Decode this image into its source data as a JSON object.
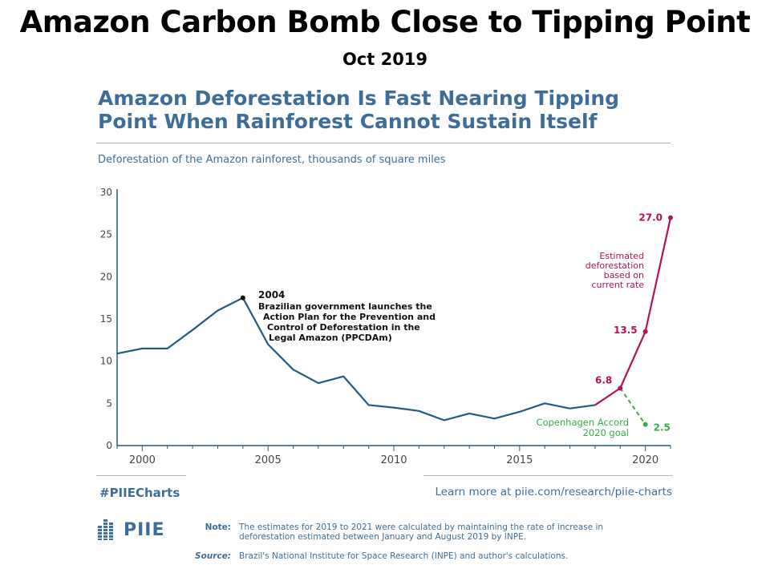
{
  "slide": {
    "title": "Amazon Carbon Bomb Close to Tipping Point",
    "subtitle": "Oct 2019"
  },
  "colors": {
    "historical": "#215c80",
    "estimated": "#b3125a",
    "goal": "#3aaa4a",
    "accent_text": "#3d6e99"
  },
  "chart_data": {
    "type": "line",
    "title": "Amazon Deforestation Is Fast Nearing Tipping Point When Rainforest Cannot Sustain Itself",
    "subtitle": "Deforestation of the Amazon rainforest, thousands of square miles",
    "xlabel": "",
    "ylabel": "",
    "xlim": [
      1999,
      2021
    ],
    "ylim": [
      0,
      30
    ],
    "x_ticks": [
      2000,
      2005,
      2010,
      2015,
      2020
    ],
    "y_ticks": [
      0,
      5,
      10,
      15,
      20,
      25,
      30
    ],
    "grid": false,
    "series": [
      {
        "key": "historical",
        "x": [
          1999,
          2000,
          2001,
          2002,
          2003,
          2004,
          2005,
          2006,
          2007,
          2008,
          2009,
          2010,
          2011,
          2012,
          2013,
          2014,
          2015,
          2016,
          2017,
          2018
        ],
        "values": [
          10.9,
          11.5,
          11.5,
          13.7,
          16.0,
          17.5,
          12.0,
          9.0,
          7.4,
          8.2,
          4.8,
          4.5,
          4.1,
          3.0,
          3.8,
          3.2,
          4.0,
          5.0,
          4.4,
          4.8
        ]
      },
      {
        "key": "estimated",
        "x": [
          2018,
          2019,
          2020,
          2021
        ],
        "values": [
          4.8,
          6.8,
          13.5,
          27.0
        ]
      },
      {
        "key": "goal",
        "x": [
          2019,
          2020
        ],
        "values": [
          6.8,
          2.5
        ]
      }
    ],
    "point_labels": [
      {
        "x": 2019,
        "y": 6.8,
        "text": "6.8",
        "series": "estimated"
      },
      {
        "x": 2020,
        "y": 13.5,
        "text": "13.5",
        "series": "estimated"
      },
      {
        "x": 2021,
        "y": 27.0,
        "text": "27.0",
        "series": "estimated"
      },
      {
        "x": 2020,
        "y": 2.5,
        "text": "2.5",
        "series": "goal"
      }
    ],
    "annotations": [
      {
        "key": "ppcdam",
        "x": 2004,
        "y": 17.5,
        "year": "2004",
        "lines": [
          "Brazilian government launches the",
          "Action Plan for the Prevention and",
          "Control of Deforestation in the",
          "Legal Amazon (PPCDAm)"
        ]
      },
      {
        "key": "estimated-note",
        "lines": [
          "Estimated",
          "deforestation",
          "based on",
          "current rate"
        ]
      },
      {
        "key": "copenhagen",
        "lines": [
          "Copenhagen Accord",
          "2020 goal"
        ]
      }
    ]
  },
  "footer": {
    "hashtag": "#PIIECharts",
    "learn_more": "Learn more at piie.com/research/piie-charts",
    "logo_text": "PIIE",
    "note_label": "Note:",
    "note_text": "The estimates for 2019 to 2021 were calculated by maintaining the rate of increase in deforestation estimated between January and August 2019 by INPE.",
    "source_label": "Source:",
    "source_text": "Brazil's National Institute for Space Research (INPE) and author's calculations."
  }
}
